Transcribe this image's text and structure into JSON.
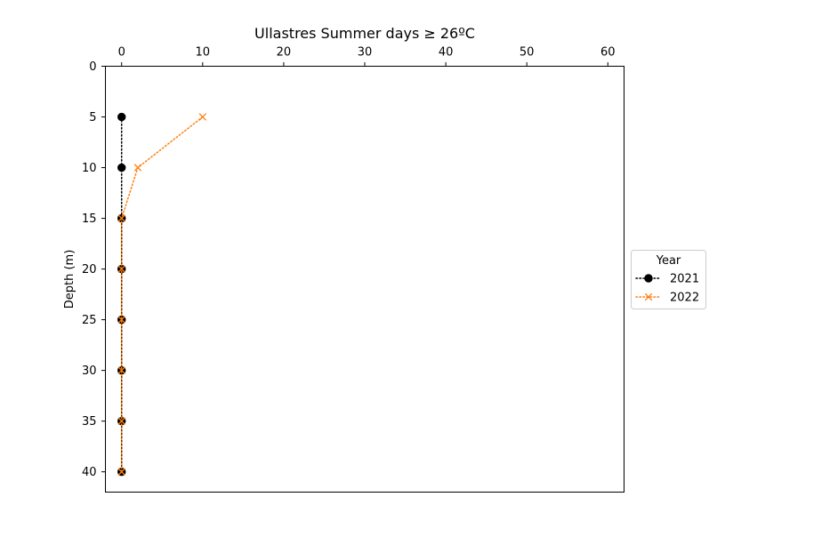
{
  "chart_data": {
    "type": "line",
    "title": "Ullastres Summer days ≥ 26ºC",
    "xlabel": "",
    "ylabel": "Depth (m)",
    "x_axis_position": "top",
    "y_inverted": true,
    "xlim": [
      -2,
      62
    ],
    "ylim": [
      0,
      42
    ],
    "xticks": [
      0,
      10,
      20,
      30,
      40,
      50,
      60
    ],
    "yticks": [
      0,
      5,
      10,
      15,
      20,
      25,
      30,
      35,
      40
    ],
    "grid": false,
    "legend": {
      "title": "Year",
      "placement": "right"
    },
    "series": [
      {
        "name": "2021",
        "color": "#000000",
        "marker": "circle",
        "linestyle": "dotted",
        "depth": [
          5,
          10,
          15,
          20,
          25,
          30,
          35,
          40
        ],
        "days": [
          0,
          0,
          0,
          0,
          0,
          0,
          0,
          0
        ]
      },
      {
        "name": "2022",
        "color": "#ff7f0e",
        "marker": "x",
        "linestyle": "dotted",
        "depth": [
          5,
          10,
          15,
          20,
          25,
          30,
          35,
          40
        ],
        "days": [
          10,
          2,
          0,
          0,
          0,
          0,
          0,
          0
        ]
      }
    ]
  }
}
